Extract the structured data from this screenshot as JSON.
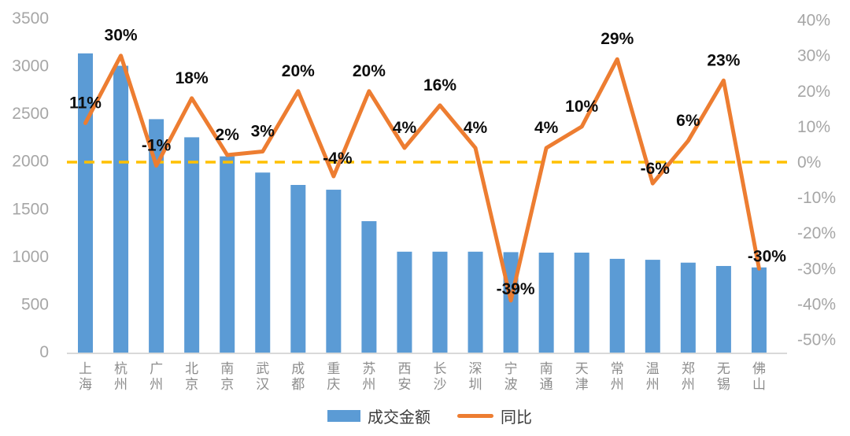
{
  "chart_data": {
    "type": "bar",
    "subtype": "bar-line-combo",
    "categories": [
      "上海",
      "杭州",
      "广州",
      "北京",
      "南京",
      "武汉",
      "成都",
      "重庆",
      "苏州",
      "西安",
      "长沙",
      "深圳",
      "宁波",
      "南通",
      "天津",
      "常州",
      "温州",
      "郑州",
      "无锡",
      "佛山"
    ],
    "series": [
      {
        "name": "成交金额",
        "type": "bar",
        "axis": "left",
        "color": "#5B9BD5",
        "values": [
          3130,
          3000,
          2440,
          2250,
          2050,
          1880,
          1750,
          1700,
          1370,
          1050,
          1050,
          1050,
          1045,
          1040,
          1040,
          975,
          965,
          935,
          900,
          885
        ]
      },
      {
        "name": "同比",
        "type": "line",
        "axis": "right",
        "color": "#ED7D31",
        "values_pct": [
          11,
          30,
          -1,
          18,
          2,
          3,
          20,
          -4,
          20,
          4,
          16,
          4,
          -39,
          4,
          10,
          29,
          -6,
          6,
          23,
          -30
        ],
        "labels": [
          "11%",
          "30%",
          "-1%",
          "18%",
          "2%",
          "3%",
          "20%",
          "-4%",
          "20%",
          "4%",
          "16%",
          "4%",
          "-39%",
          "4%",
          "10%",
          "29%",
          "-6%",
          "6%",
          "23%",
          "-30%"
        ]
      }
    ],
    "left_axis": {
      "min": 0,
      "max": 3500,
      "step": 500,
      "ticks": [
        "3500",
        "3000",
        "2500",
        "2000",
        "1500",
        "1000",
        "500",
        "0"
      ]
    },
    "right_axis": {
      "min": -50,
      "max": 40,
      "step": 10,
      "ticks": [
        "40%",
        "30%",
        "20%",
        "10%",
        "0%",
        "-10%",
        "-20%",
        "-30%",
        "-40%",
        "-50%"
      ]
    },
    "reference_line": {
      "axis": "right",
      "value_pct": 0,
      "style": "dashed",
      "color": "#FFC000"
    },
    "grid": "off",
    "title": "",
    "legend_position": "bottom-center",
    "legend": [
      {
        "label": "成交金额",
        "swatch": "bar",
        "color": "#5B9BD5"
      },
      {
        "label": "同比",
        "swatch": "line",
        "color": "#ED7D31"
      }
    ],
    "colors": {
      "bar": "#5B9BD5",
      "line": "#ED7D31",
      "reference": "#FFC000",
      "axis_text": "#a6a6a6",
      "category_text": "#8c8c8c",
      "data_label_text": "#0d0d0d",
      "axis_line": "#d9d9d9",
      "background": "#ffffff"
    }
  }
}
